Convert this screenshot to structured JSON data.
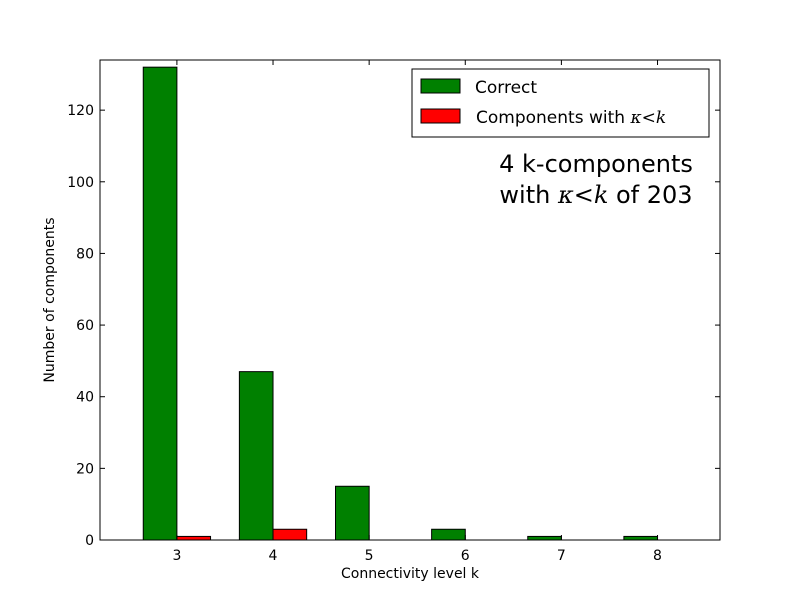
{
  "chart_data": {
    "type": "bar",
    "title": "",
    "xlabel": "Connectivity level k",
    "ylabel": "Number of components",
    "categories": [
      "3",
      "4",
      "5",
      "6",
      "7",
      "8"
    ],
    "x": [
      3,
      4,
      5,
      6,
      7,
      8
    ],
    "xlim": [
      2.2,
      8.65
    ],
    "ylim": [
      0,
      134
    ],
    "yticks": [
      0,
      20,
      40,
      60,
      80,
      100,
      120
    ],
    "series": [
      {
        "name": "Correct",
        "color": "#008000",
        "values": [
          132,
          47,
          15,
          3,
          1,
          1
        ]
      },
      {
        "name": "Components with",
        "name_math": "κ<k",
        "color": "#ff0000",
        "values": [
          1,
          3,
          0,
          0,
          0,
          0
        ]
      }
    ],
    "legend": {
      "placement": "top-right"
    },
    "annotation": {
      "line1": "4 k-components",
      "line2_prefix": "with",
      "line2_math": "κ<k",
      "line2_suffix": "of 203"
    },
    "grid": false
  }
}
